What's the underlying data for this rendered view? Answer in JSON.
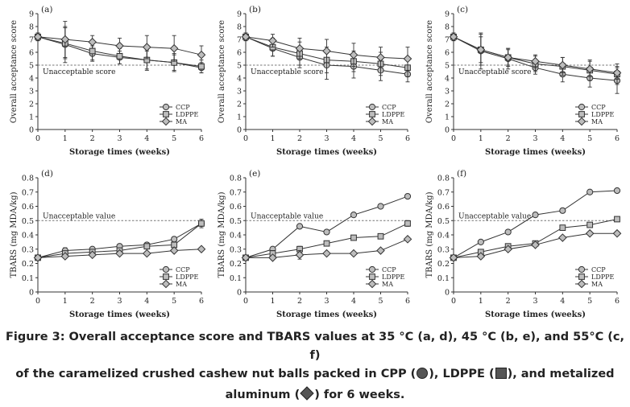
{
  "caption": {
    "line1": "Figure 3: Overall acceptance score and TBARS values at 35 °C (a, d), 45 °C (b, e), and 55°C (c, f)",
    "line2a": "of the caramelized crushed cashew nut balls packed in CPP (",
    "line2b": "), LDPPE (",
    "line2c": "), and metalized",
    "line3a": "aluminum (",
    "line3b": ") for 6 weeks."
  },
  "colors": {
    "line": "#333333",
    "marker_fill": "#bdbdbd",
    "threshold": "#777777",
    "text": "#222222"
  },
  "chart_data": [
    {
      "panel": "(a)",
      "type": "line",
      "xlabel": "Storage times (weeks)",
      "ylabel": "Overall acceptance score",
      "x": [
        0,
        1,
        2,
        3,
        4,
        5,
        6
      ],
      "xlim": [
        0,
        6
      ],
      "ylim": [
        0,
        9
      ],
      "yticks": [
        0,
        1,
        2,
        3,
        4,
        5,
        6,
        7,
        8,
        9
      ],
      "threshold": 5,
      "threshold_label": "Unacceptable score",
      "legend": "lower-right",
      "series": [
        {
          "name": "CCP",
          "marker": "circle",
          "values": [
            7.2,
            6.6,
            5.9,
            5.6,
            5.4,
            5.2,
            4.8
          ],
          "err": [
            0.3,
            1.4,
            0.6,
            0.5,
            0.7,
            0.7,
            0.4
          ]
        },
        {
          "name": "LDPPE",
          "marker": "square",
          "values": [
            7.2,
            6.7,
            6.1,
            5.7,
            5.4,
            5.2,
            4.9
          ],
          "err": [
            0.3,
            1.2,
            0.7,
            0.6,
            0.8,
            0.6,
            0.5
          ]
        },
        {
          "name": "MA",
          "marker": "diamond",
          "values": [
            7.2,
            7.0,
            6.8,
            6.5,
            6.4,
            6.3,
            5.8
          ],
          "err": [
            0.3,
            1.4,
            0.5,
            0.6,
            0.9,
            1.0,
            0.7
          ]
        }
      ]
    },
    {
      "panel": "(b)",
      "type": "line",
      "xlabel": "Storage times (weeks)",
      "ylabel": "Overall acceptance score",
      "x": [
        0,
        1,
        2,
        3,
        4,
        5,
        6
      ],
      "xlim": [
        0,
        6
      ],
      "ylim": [
        0,
        9
      ],
      "yticks": [
        0,
        1,
        2,
        3,
        4,
        5,
        6,
        7,
        8,
        9
      ],
      "threshold": 5,
      "threshold_label": "Unacceptable score",
      "legend": "lower-right",
      "series": [
        {
          "name": "CCP",
          "marker": "circle",
          "values": [
            7.2,
            6.3,
            5.6,
            5.0,
            4.9,
            4.6,
            4.3
          ],
          "err": [
            0.3,
            0.6,
            0.8,
            1.1,
            0.9,
            0.8,
            0.6
          ]
        },
        {
          "name": "LDPPE",
          "marker": "square",
          "values": [
            7.2,
            6.4,
            5.9,
            5.4,
            5.3,
            5.1,
            4.8
          ],
          "err": [
            0.3,
            0.7,
            0.9,
            1.0,
            0.8,
            0.9,
            0.7
          ]
        },
        {
          "name": "MA",
          "marker": "diamond",
          "values": [
            7.2,
            6.9,
            6.3,
            6.1,
            5.8,
            5.6,
            5.5
          ],
          "err": [
            0.3,
            0.5,
            0.8,
            0.9,
            0.9,
            0.8,
            0.9
          ]
        }
      ]
    },
    {
      "panel": "(c)",
      "type": "line",
      "xlabel": "Storage times (weeks)",
      "ylabel": "Overall acceptance score",
      "x": [
        0,
        1,
        2,
        3,
        4,
        5,
        6
      ],
      "xlim": [
        0,
        6
      ],
      "ylim": [
        0,
        9
      ],
      "yticks": [
        0,
        1,
        2,
        3,
        4,
        5,
        6,
        7,
        8,
        9
      ],
      "threshold": 5,
      "threshold_label": "Unacceptable score",
      "legend": "lower-right",
      "series": [
        {
          "name": "CCP",
          "marker": "circle",
          "values": [
            7.2,
            6.1,
            5.5,
            4.8,
            4.3,
            4.0,
            3.8
          ],
          "err": [
            0.3,
            1.4,
            0.8,
            0.5,
            0.6,
            0.7,
            1.0
          ]
        },
        {
          "name": "LDPPE",
          "marker": "square",
          "values": [
            7.2,
            6.2,
            5.6,
            5.1,
            4.9,
            4.6,
            4.3
          ],
          "err": [
            0.3,
            1.2,
            0.7,
            0.6,
            0.7,
            0.8,
            0.8
          ]
        },
        {
          "name": "MA",
          "marker": "diamond",
          "values": [
            7.2,
            6.2,
            5.6,
            5.3,
            5.0,
            4.7,
            4.4
          ],
          "err": [
            0.3,
            1.0,
            0.6,
            0.5,
            0.6,
            0.6,
            0.5
          ]
        }
      ]
    },
    {
      "panel": "(d)",
      "type": "line",
      "xlabel": "Storage times (weeks)",
      "ylabel": "TBARS (mg MDA/kg)",
      "x": [
        0,
        1,
        2,
        3,
        4,
        5,
        6
      ],
      "xlim": [
        0,
        6
      ],
      "ylim": [
        0,
        0.8
      ],
      "yticks": [
        0,
        0.1,
        0.2,
        0.3,
        0.4,
        0.5,
        0.6,
        0.7,
        0.8
      ],
      "threshold": 0.5,
      "threshold_label": "Unacceptable value",
      "legend": "lower-right",
      "series": [
        {
          "name": "CCP",
          "marker": "circle",
          "values": [
            0.24,
            0.29,
            0.3,
            0.32,
            0.33,
            0.37,
            0.48
          ],
          "err": [
            0.01,
            0.02,
            0.01,
            0.01,
            0.01,
            0.01,
            0.02
          ]
        },
        {
          "name": "LDPPE",
          "marker": "square",
          "values": [
            0.24,
            0.27,
            0.28,
            0.29,
            0.32,
            0.33,
            0.48
          ],
          "err": [
            0.01,
            0.01,
            0.01,
            0.01,
            0.01,
            0.01,
            0.03
          ]
        },
        {
          "name": "MA",
          "marker": "diamond",
          "values": [
            0.24,
            0.25,
            0.26,
            0.27,
            0.27,
            0.29,
            0.3
          ],
          "err": [
            0.01,
            0.01,
            0.01,
            0.01,
            0.01,
            0.01,
            0.01
          ]
        }
      ]
    },
    {
      "panel": "(e)",
      "type": "line",
      "xlabel": "Storage times (weeks)",
      "ylabel": "TBARS (mg MDA/kg)",
      "x": [
        0,
        1,
        2,
        3,
        4,
        5,
        6
      ],
      "xlim": [
        0,
        6
      ],
      "ylim": [
        0,
        0.8
      ],
      "yticks": [
        0,
        0.1,
        0.2,
        0.3,
        0.4,
        0.5,
        0.6,
        0.7,
        0.8
      ],
      "threshold": 0.5,
      "threshold_label": "Unacceptable value",
      "legend": "lower-right",
      "series": [
        {
          "name": "CCP",
          "marker": "circle",
          "values": [
            0.24,
            0.3,
            0.46,
            0.42,
            0.54,
            0.6,
            0.67
          ],
          "err": [
            0.01,
            0.01,
            0.01,
            0.01,
            0.01,
            0.01,
            0.01
          ]
        },
        {
          "name": "LDPPE",
          "marker": "square",
          "values": [
            0.24,
            0.27,
            0.3,
            0.34,
            0.38,
            0.39,
            0.48
          ],
          "err": [
            0.01,
            0.02,
            0.02,
            0.01,
            0.01,
            0.01,
            0.02
          ]
        },
        {
          "name": "MA",
          "marker": "diamond",
          "values": [
            0.24,
            0.24,
            0.26,
            0.27,
            0.27,
            0.29,
            0.37
          ],
          "err": [
            0.01,
            0.01,
            0.03,
            0.01,
            0.01,
            0.01,
            0.01
          ]
        }
      ]
    },
    {
      "panel": "(f)",
      "type": "line",
      "xlabel": "Storage times (weeks)",
      "ylabel": "TBARS (mg MDA/kg)",
      "x": [
        0,
        1,
        2,
        3,
        4,
        5,
        6
      ],
      "xlim": [
        0,
        6
      ],
      "ylim": [
        0,
        0.8
      ],
      "yticks": [
        0,
        0.1,
        0.2,
        0.3,
        0.4,
        0.5,
        0.6,
        0.7,
        0.8
      ],
      "threshold": 0.5,
      "threshold_label": "Unacceptable value",
      "legend": "lower-right",
      "series": [
        {
          "name": "CCP",
          "marker": "circle",
          "values": [
            0.24,
            0.35,
            0.42,
            0.54,
            0.57,
            0.7,
            0.71
          ],
          "err": [
            0.01,
            0.01,
            0.01,
            0.01,
            0.01,
            0.01,
            0.01
          ]
        },
        {
          "name": "LDPPE",
          "marker": "square",
          "values": [
            0.24,
            0.28,
            0.32,
            0.34,
            0.45,
            0.47,
            0.51
          ],
          "err": [
            0.01,
            0.01,
            0.01,
            0.01,
            0.01,
            0.01,
            0.01
          ]
        },
        {
          "name": "MA",
          "marker": "diamond",
          "values": [
            0.24,
            0.25,
            0.3,
            0.33,
            0.38,
            0.41,
            0.41
          ],
          "err": [
            0.01,
            0.01,
            0.01,
            0.01,
            0.01,
            0.01,
            0.01
          ]
        }
      ]
    }
  ]
}
